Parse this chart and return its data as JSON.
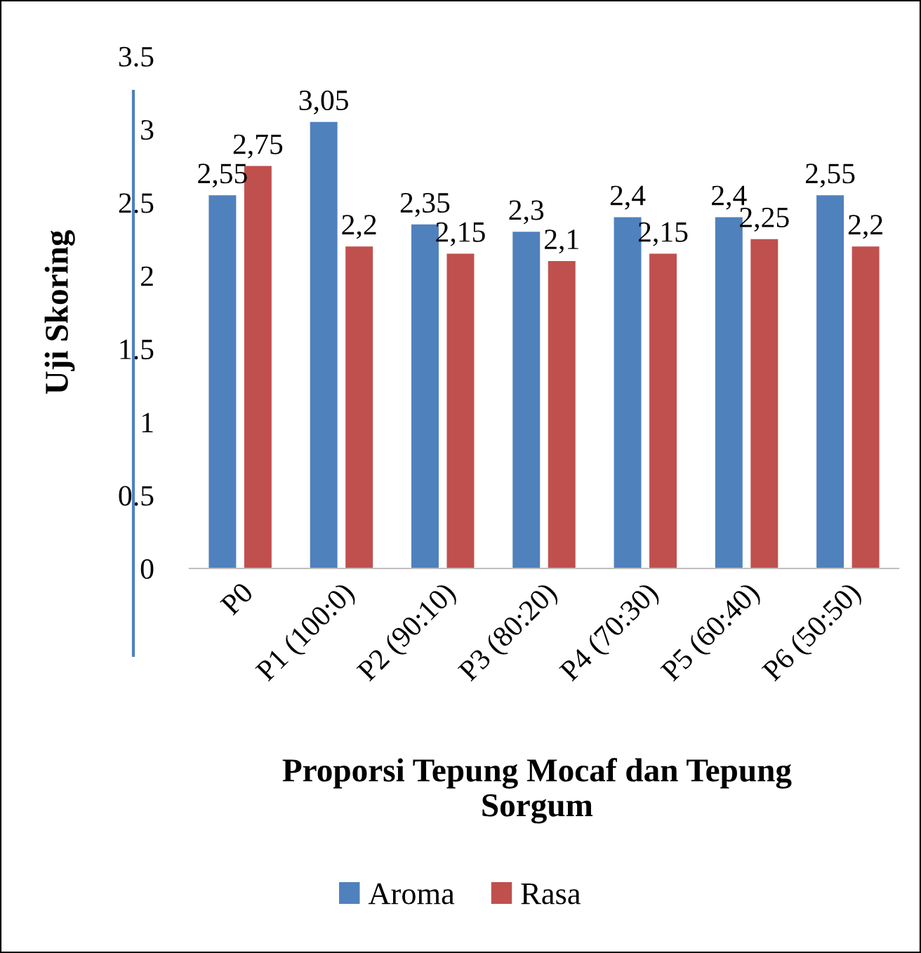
{
  "chart_data": {
    "type": "bar",
    "xlabel": "Proporsi Tepung Mocaf dan Tepung\nSorgum",
    "ylabel": "Uji Skoring",
    "categories": [
      "P0",
      "P1 (100:0)",
      "P2 (90:10)",
      "P3 (80:20)",
      "P4 (70:30)",
      "P5 (60:40)",
      "P6 (50:50)"
    ],
    "series": [
      {
        "name": "Aroma",
        "color": "#4f81bd",
        "values": [
          2.55,
          3.05,
          2.35,
          2.3,
          2.4,
          2.4,
          2.55
        ],
        "value_labels": [
          "2,55",
          "3,05",
          "2,35",
          "2,3",
          "2,4",
          "2,4",
          "2,55"
        ]
      },
      {
        "name": "Rasa",
        "color": "#c0504d",
        "values": [
          2.75,
          2.2,
          2.15,
          2.1,
          2.15,
          2.25,
          2.2
        ],
        "value_labels": [
          "2,75",
          "2,2",
          "2,15",
          "2,1",
          "2,15",
          "2,25",
          "2,2"
        ]
      }
    ],
    "ylim": [
      0,
      3.5
    ],
    "yticks": [
      0,
      0.5,
      1,
      1.5,
      2,
      2.5,
      3,
      3.5
    ],
    "grid": false,
    "legend": "bottom"
  }
}
